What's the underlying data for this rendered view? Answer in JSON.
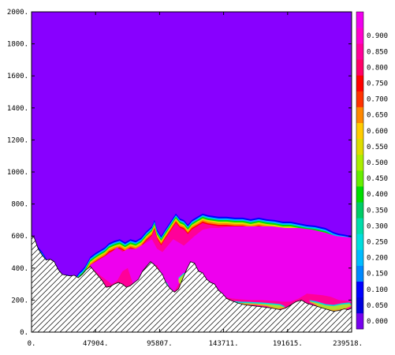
{
  "chart_data": {
    "type": "heatmap",
    "x": {
      "ticks": [
        0,
        47904,
        95807,
        143711,
        191615,
        239518
      ],
      "tick_labels": [
        "0.",
        "47904.",
        "95807.",
        "143711.",
        "191615.",
        "239518."
      ],
      "range": [
        0,
        239518
      ]
    },
    "y": {
      "ticks": [
        0,
        200,
        400,
        600,
        800,
        1000,
        1200,
        1400,
        1600,
        1800,
        2000
      ],
      "tick_labels": [
        "0.",
        "200.",
        "400.",
        "600.",
        "800.",
        "1000.",
        "1200.",
        "1400.",
        "1600.",
        "1800.",
        "2000."
      ],
      "range": [
        0,
        2000
      ]
    },
    "colorbar": {
      "levels": [
        0.0,
        0.05,
        0.1,
        0.15,
        0.2,
        0.25,
        0.3,
        0.35,
        0.4,
        0.45,
        0.5,
        0.55,
        0.6,
        0.65,
        0.7,
        0.75,
        0.8,
        0.85,
        0.9,
        0.95
      ],
      "labels": [
        "0.000",
        "0.050",
        "0.100",
        "0.150",
        "0.200",
        "0.250",
        "0.300",
        "0.350",
        "0.400",
        "0.450",
        "0.500",
        "0.550",
        "0.600",
        "0.650",
        "0.700",
        "0.750",
        "0.800",
        "0.850",
        "0.900",
        ""
      ],
      "colors": [
        "#7700ee",
        "#0000dd",
        "#0000ff",
        "#0088ff",
        "#00bbff",
        "#00dddd",
        "#00ddaa",
        "#00cc66",
        "#00dd00",
        "#66ee00",
        "#aaee00",
        "#dddd00",
        "#ffcc00",
        "#ff8800",
        "#ff3300",
        "#ff0000",
        "#ff0066",
        "#ff0099",
        "#ff00cc",
        "#ee00ee"
      ]
    },
    "background_color": "#8800ff",
    "core_color": "#ee00ee",
    "upper_surface": [
      [
        0,
        580
      ],
      [
        8000,
        500
      ],
      [
        14000,
        420
      ],
      [
        19000,
        360
      ],
      [
        23000,
        345
      ],
      [
        27000,
        360
      ],
      [
        30000,
        340
      ],
      [
        33000,
        345
      ],
      [
        36000,
        375
      ],
      [
        38000,
        390
      ],
      [
        40000,
        410
      ],
      [
        42000,
        440
      ],
      [
        44000,
        470
      ],
      [
        48000,
        495
      ],
      [
        52000,
        515
      ],
      [
        55000,
        530
      ],
      [
        58000,
        555
      ],
      [
        62000,
        570
      ],
      [
        66000,
        580
      ],
      [
        70000,
        560
      ],
      [
        74000,
        580
      ],
      [
        78000,
        570
      ],
      [
        82000,
        590
      ],
      [
        86000,
        630
      ],
      [
        90000,
        660
      ],
      [
        92000,
        700
      ],
      [
        94000,
        640
      ],
      [
        97000,
        600
      ],
      [
        100000,
        640
      ],
      [
        104000,
        690
      ],
      [
        108000,
        740
      ],
      [
        111000,
        710
      ],
      [
        114000,
        700
      ],
      [
        117000,
        670
      ],
      [
        120000,
        700
      ],
      [
        124000,
        720
      ],
      [
        128000,
        740
      ],
      [
        132000,
        730
      ],
      [
        136000,
        725
      ],
      [
        140000,
        720
      ],
      [
        146000,
        720
      ],
      [
        152000,
        715
      ],
      [
        158000,
        715
      ],
      [
        164000,
        705
      ],
      [
        170000,
        715
      ],
      [
        176000,
        705
      ],
      [
        182000,
        700
      ],
      [
        188000,
        690
      ],
      [
        194000,
        690
      ],
      [
        200000,
        680
      ],
      [
        206000,
        670
      ],
      [
        212000,
        665
      ],
      [
        220000,
        650
      ],
      [
        226000,
        625
      ],
      [
        230000,
        615
      ],
      [
        234000,
        610
      ],
      [
        239518,
        600
      ]
    ],
    "core_top": [
      [
        44000,
        420
      ],
      [
        48000,
        440
      ],
      [
        52000,
        460
      ],
      [
        56000,
        480
      ],
      [
        60000,
        500
      ],
      [
        64000,
        530
      ],
      [
        68000,
        500
      ],
      [
        72000,
        520
      ],
      [
        78000,
        520
      ],
      [
        82000,
        540
      ],
      [
        86000,
        560
      ],
      [
        90000,
        580
      ],
      [
        94000,
        520
      ],
      [
        98000,
        500
      ],
      [
        102000,
        540
      ],
      [
        106000,
        580
      ],
      [
        110000,
        560
      ],
      [
        114000,
        540
      ],
      [
        118000,
        570
      ],
      [
        122000,
        600
      ],
      [
        128000,
        640
      ],
      [
        134000,
        650
      ],
      [
        140000,
        650
      ],
      [
        150000,
        660
      ],
      [
        160000,
        660
      ],
      [
        170000,
        660
      ],
      [
        180000,
        660
      ],
      [
        190000,
        650
      ],
      [
        200000,
        650
      ],
      [
        210000,
        640
      ],
      [
        220000,
        620
      ],
      [
        228000,
        600
      ],
      [
        234000,
        595
      ],
      [
        239518,
        590
      ]
    ],
    "core_bottom": [
      [
        44000,
        410
      ],
      [
        52000,
        350
      ],
      [
        60000,
        300
      ],
      [
        64000,
        320
      ],
      [
        68000,
        380
      ],
      [
        72000,
        400
      ],
      [
        76000,
        300
      ],
      [
        82000,
        330
      ],
      [
        88000,
        400
      ],
      [
        94000,
        420
      ],
      [
        98000,
        350
      ],
      [
        102000,
        280
      ],
      [
        106000,
        250
      ],
      [
        108000,
        270
      ],
      [
        112000,
        330
      ],
      [
        116000,
        390
      ],
      [
        120000,
        410
      ],
      [
        126000,
        350
      ],
      [
        132000,
        300
      ],
      [
        138000,
        260
      ],
      [
        144000,
        220
      ],
      [
        150000,
        210
      ],
      [
        156000,
        205
      ],
      [
        164000,
        200
      ],
      [
        172000,
        200
      ],
      [
        180000,
        195
      ],
      [
        188000,
        190
      ],
      [
        194000,
        190
      ],
      [
        200000,
        210
      ],
      [
        206000,
        240
      ],
      [
        212000,
        235
      ],
      [
        218000,
        230
      ],
      [
        224000,
        220
      ],
      [
        230000,
        200
      ],
      [
        236000,
        195
      ],
      [
        239518,
        190
      ]
    ],
    "shallow_pockets": [
      [
        [
          142000,
          210
        ],
        [
          150000,
          195
        ],
        [
          156000,
          190
        ],
        [
          164000,
          188
        ],
        [
          172000,
          185
        ],
        [
          180000,
          180
        ],
        [
          186000,
          175
        ],
        [
          190000,
          160
        ],
        [
          184000,
          150
        ],
        [
          176000,
          170
        ],
        [
          168000,
          178
        ],
        [
          160000,
          180
        ],
        [
          150000,
          185
        ],
        [
          142000,
          200
        ]
      ],
      [
        [
          208000,
          200
        ],
        [
          214000,
          190
        ],
        [
          220000,
          175
        ],
        [
          226000,
          170
        ],
        [
          232000,
          180
        ],
        [
          238000,
          185
        ],
        [
          239518,
          170
        ],
        [
          234000,
          150
        ],
        [
          226000,
          140
        ],
        [
          218000,
          150
        ],
        [
          212000,
          180
        ],
        [
          208000,
          195
        ]
      ],
      [
        [
          110000,
          340
        ],
        [
          114000,
          370
        ],
        [
          118000,
          360
        ],
        [
          116000,
          310
        ],
        [
          112000,
          300
        ],
        [
          110000,
          320
        ]
      ],
      [
        [
          98000,
          340
        ],
        [
          102000,
          300
        ],
        [
          104000,
          260
        ],
        [
          100000,
          270
        ],
        [
          97000,
          320
        ]
      ]
    ],
    "bottom_profile": [
      [
        0,
        600
      ],
      [
        2000,
        590
      ],
      [
        5000,
        520
      ],
      [
        8000,
        480
      ],
      [
        11000,
        450
      ],
      [
        14000,
        455
      ],
      [
        17000,
        440
      ],
      [
        20000,
        390
      ],
      [
        23000,
        360
      ],
      [
        26000,
        355
      ],
      [
        29000,
        350
      ],
      [
        32000,
        355
      ],
      [
        35000,
        340
      ],
      [
        38000,
        360
      ],
      [
        41000,
        390
      ],
      [
        44000,
        410
      ],
      [
        47000,
        380
      ],
      [
        50000,
        350
      ],
      [
        53000,
        320
      ],
      [
        56000,
        280
      ],
      [
        59000,
        285
      ],
      [
        62000,
        300
      ],
      [
        65000,
        310
      ],
      [
        68000,
        300
      ],
      [
        71000,
        280
      ],
      [
        74000,
        290
      ],
      [
        77000,
        310
      ],
      [
        80000,
        330
      ],
      [
        83000,
        380
      ],
      [
        86000,
        410
      ],
      [
        89000,
        440
      ],
      [
        92000,
        420
      ],
      [
        95000,
        390
      ],
      [
        98000,
        360
      ],
      [
        101000,
        300
      ],
      [
        104000,
        270
      ],
      [
        107000,
        250
      ],
      [
        110000,
        270
      ],
      [
        113000,
        330
      ],
      [
        116000,
        390
      ],
      [
        119000,
        440
      ],
      [
        122000,
        430
      ],
      [
        125000,
        380
      ],
      [
        128000,
        370
      ],
      [
        131000,
        330
      ],
      [
        134000,
        310
      ],
      [
        137000,
        300
      ],
      [
        140000,
        260
      ],
      [
        143000,
        240
      ],
      [
        146000,
        210
      ],
      [
        150000,
        195
      ],
      [
        155000,
        180
      ],
      [
        160000,
        170
      ],
      [
        165000,
        165
      ],
      [
        170000,
        160
      ],
      [
        175000,
        155
      ],
      [
        180000,
        150
      ],
      [
        186000,
        140
      ],
      [
        190000,
        150
      ],
      [
        194000,
        170
      ],
      [
        198000,
        190
      ],
      [
        202000,
        200
      ],
      [
        206000,
        180
      ],
      [
        210000,
        170
      ],
      [
        214000,
        160
      ],
      [
        218000,
        150
      ],
      [
        222000,
        140
      ],
      [
        226000,
        130
      ],
      [
        230000,
        135
      ],
      [
        234000,
        145
      ],
      [
        237000,
        140
      ],
      [
        239518,
        150
      ]
    ]
  }
}
